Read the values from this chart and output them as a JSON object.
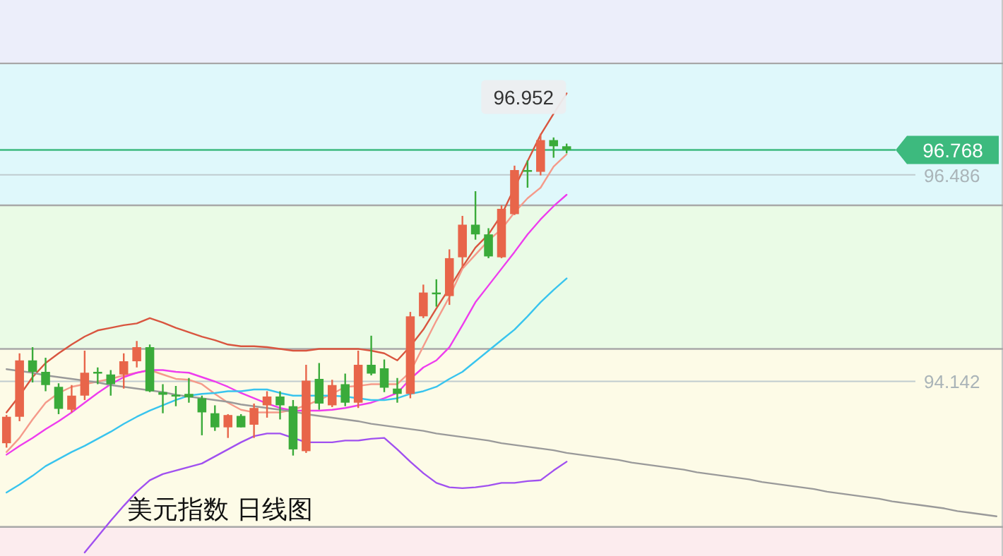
{
  "chart_data": {
    "type": "candlestick",
    "title": "美元指数 日线图",
    "categories": [
      null,
      null,
      null,
      null,
      null,
      null,
      null,
      null,
      null,
      null,
      null,
      null,
      null,
      null,
      null,
      null,
      null,
      null,
      null,
      null,
      null,
      null,
      null,
      null,
      null,
      null,
      null,
      null,
      null,
      null,
      null,
      null,
      null,
      null,
      null,
      null,
      null,
      null,
      null,
      null,
      null,
      null,
      null,
      null,
      null,
      null,
      null,
      null,
      null,
      null,
      null,
      null,
      null,
      null,
      null,
      null,
      null,
      null,
      null,
      null,
      null,
      null,
      null,
      null,
      null,
      null,
      null,
      null,
      null,
      null,
      null,
      null,
      null,
      null,
      null,
      null,
      null
    ],
    "ohlc": [
      [
        93.44,
        93.76,
        93.39,
        93.74
      ],
      [
        93.74,
        94.46,
        93.69,
        94.38
      ],
      [
        94.38,
        94.53,
        94.13,
        94.25
      ],
      [
        94.25,
        94.41,
        94.03,
        94.1
      ],
      [
        94.08,
        94.12,
        93.77,
        93.83
      ],
      [
        93.82,
        94.1,
        93.79,
        93.98
      ],
      [
        93.98,
        94.49,
        93.93,
        94.24
      ],
      [
        94.25,
        94.3,
        94.11,
        94.23
      ],
      [
        94.22,
        94.27,
        93.98,
        94.11
      ],
      [
        94.22,
        94.46,
        94.06,
        94.37
      ],
      [
        94.37,
        94.6,
        94.3,
        94.53
      ],
      [
        94.53,
        94.56,
        94.02,
        94.03
      ],
      [
        94.02,
        94.11,
        93.78,
        93.99
      ],
      [
        93.99,
        94.09,
        93.86,
        93.97
      ],
      [
        94.0,
        94.18,
        93.9,
        93.96
      ],
      [
        93.95,
        93.98,
        93.53,
        93.79
      ],
      [
        93.78,
        93.87,
        93.58,
        93.62
      ],
      [
        93.62,
        93.77,
        93.5,
        93.76
      ],
      [
        93.75,
        93.77,
        93.62,
        93.62
      ],
      [
        93.65,
        93.89,
        93.5,
        93.84
      ],
      [
        93.87,
        94.03,
        93.73,
        93.97
      ],
      [
        93.97,
        94.03,
        93.71,
        93.87
      ],
      [
        93.86,
        93.93,
        93.3,
        93.37
      ],
      [
        93.35,
        94.33,
        93.33,
        94.15
      ],
      [
        94.17,
        94.35,
        93.82,
        93.89
      ],
      [
        93.87,
        94.16,
        93.85,
        94.1
      ],
      [
        94.11,
        94.23,
        93.86,
        93.9
      ],
      [
        93.9,
        94.49,
        93.84,
        94.33
      ],
      [
        94.33,
        94.66,
        94.21,
        94.23
      ],
      [
        94.29,
        94.39,
        94.02,
        94.07
      ],
      [
        94.06,
        94.18,
        93.9,
        94.0
      ],
      [
        94.0,
        94.93,
        93.95,
        94.88
      ],
      [
        94.88,
        95.24,
        94.86,
        95.15
      ],
      [
        95.15,
        95.3,
        94.99,
        95.13
      ],
      [
        95.11,
        95.64,
        95.01,
        95.54
      ],
      [
        95.55,
        96.02,
        95.43,
        95.92
      ],
      [
        95.92,
        96.3,
        95.75,
        95.81
      ],
      [
        95.81,
        95.88,
        95.54,
        95.56
      ],
      [
        95.55,
        96.14,
        95.54,
        96.1
      ],
      [
        96.04,
        96.59,
        96.03,
        96.54
      ],
      [
        96.54,
        96.65,
        96.34,
        96.52
      ],
      [
        96.52,
        96.952,
        96.48,
        96.88
      ],
      [
        96.88,
        96.91,
        96.68,
        96.81
      ],
      [
        96.81,
        96.84,
        96.73,
        96.768
      ],
      null,
      null,
      null,
      null,
      null,
      null,
      null,
      null,
      null,
      null,
      null,
      null,
      null,
      null,
      null,
      null,
      null,
      null,
      null,
      null,
      null,
      null,
      null,
      null,
      null,
      null,
      null,
      null,
      null,
      null,
      null,
      null,
      null
    ],
    "colors": [
      "#e8654a",
      "#e8654a",
      "#3aab3a",
      "#3aab3a",
      "#3aab3a",
      "#e8654a",
      "#e8654a",
      "#3aab3a",
      "#3aab3a",
      "#e8654a",
      "#e8654a",
      "#3aab3a",
      "#3aab3a",
      "#3aab3a",
      "#3aab3a",
      "#3aab3a",
      "#3aab3a",
      "#e8654a",
      "#3aab3a",
      "#e8654a",
      "#e8654a",
      "#3aab3a",
      "#3aab3a",
      "#e8654a",
      "#3aab3a",
      "#e8654a",
      "#3aab3a",
      "#e8654a",
      "#3aab3a",
      "#3aab3a",
      "#3aab3a",
      "#e8654a",
      "#e8654a",
      "#3aab3a",
      "#e8654a",
      "#e8654a",
      "#3aab3a",
      "#3aab3a",
      "#e8654a",
      "#e8654a",
      "#3aab3a",
      "#e8654a",
      "#3aab3a",
      "#3aab3a",
      null,
      null,
      null,
      null,
      null,
      null,
      null,
      null,
      null,
      null,
      null,
      null,
      null,
      null,
      null,
      null,
      null,
      null,
      null,
      null,
      null,
      null,
      null,
      null,
      null,
      null,
      null,
      null,
      null,
      null,
      null,
      null,
      null
    ],
    "series": [
      {
        "type": "line",
        "color": "#d9553f",
        "values": [
          93.79,
          93.98,
          94.19,
          94.35,
          94.46,
          94.56,
          94.65,
          94.72,
          94.75,
          94.78,
          94.8,
          94.86,
          94.81,
          94.75,
          94.7,
          94.65,
          94.61,
          94.56,
          94.54,
          94.54,
          94.53,
          94.51,
          94.49,
          94.49,
          94.51,
          94.51,
          94.51,
          94.51,
          94.49,
          94.46,
          94.38,
          94.54,
          94.73,
          94.97,
          95.2,
          95.44,
          95.66,
          95.81,
          96.03,
          96.34,
          96.64,
          96.94,
          97.18,
          97.41,
          null,
          null,
          null,
          null,
          null,
          null,
          null,
          null,
          null,
          null,
          null,
          null,
          null,
          null,
          null,
          null,
          null,
          null,
          null,
          null,
          null,
          null,
          null,
          null,
          null,
          null,
          null,
          null,
          null,
          null,
          null,
          null,
          null
        ]
      },
      {
        "type": "line",
        "color": "#f59a8a",
        "values": [
          93.34,
          93.5,
          93.71,
          93.9,
          94.01,
          94.08,
          94.11,
          94.14,
          94.17,
          94.21,
          94.24,
          94.27,
          94.22,
          94.17,
          94.16,
          94.11,
          94.0,
          93.9,
          93.82,
          93.79,
          93.79,
          93.79,
          93.82,
          93.87,
          93.93,
          94.0,
          94.08,
          94.09,
          94.11,
          94.11,
          94.11,
          94.25,
          94.54,
          94.83,
          95.1,
          95.42,
          95.58,
          95.74,
          95.87,
          96.06,
          96.22,
          96.34,
          96.58,
          96.72,
          null,
          null,
          null,
          null,
          null,
          null,
          null,
          null,
          null,
          null,
          null,
          null,
          null,
          null,
          null,
          null,
          null,
          null,
          null,
          null,
          null,
          null,
          null,
          null,
          null,
          null,
          null,
          null,
          null,
          null,
          null,
          null,
          null
        ]
      },
      {
        "type": "line",
        "color": "#ee3cee",
        "values": [
          93.31,
          93.41,
          93.5,
          93.6,
          93.69,
          93.79,
          93.9,
          94.01,
          94.11,
          94.19,
          94.24,
          94.27,
          94.27,
          94.25,
          94.24,
          94.19,
          94.14,
          94.08,
          94.01,
          93.95,
          93.89,
          93.84,
          93.81,
          93.81,
          93.81,
          93.82,
          93.84,
          93.87,
          93.9,
          93.95,
          94.01,
          94.17,
          94.3,
          94.38,
          94.53,
          94.78,
          95.04,
          95.23,
          95.42,
          95.61,
          95.81,
          95.98,
          96.13,
          96.26,
          null,
          null,
          null,
          null,
          null,
          null,
          null,
          null,
          null,
          null,
          null,
          null,
          null,
          null,
          null,
          null,
          null,
          null,
          null,
          null,
          null,
          null,
          null,
          null,
          null,
          null,
          null,
          null,
          null,
          null,
          null,
          null,
          null
        ]
      },
      {
        "type": "line",
        "color": "#38c4ee",
        "values": [
          92.88,
          92.97,
          93.07,
          93.18,
          93.26,
          93.34,
          93.41,
          93.49,
          93.57,
          93.66,
          93.74,
          93.81,
          93.87,
          93.93,
          93.98,
          94.0,
          94.01,
          94.03,
          94.03,
          94.05,
          94.05,
          94.01,
          93.98,
          93.98,
          93.98,
          93.98,
          93.97,
          93.95,
          93.93,
          93.93,
          93.95,
          94.0,
          94.03,
          94.08,
          94.17,
          94.25,
          94.37,
          94.49,
          94.61,
          94.73,
          94.88,
          95.04,
          95.18,
          95.31,
          null,
          null,
          null,
          null,
          null,
          null,
          null,
          null,
          null,
          null,
          null,
          null,
          null,
          null,
          null,
          null,
          null,
          null,
          null,
          null,
          null,
          null,
          null,
          null,
          null,
          null,
          null,
          null,
          null,
          null,
          null,
          null,
          null
        ]
      },
      {
        "type": "line",
        "color": "#a050f0",
        "values": [
          null,
          null,
          null,
          null,
          null,
          null,
          92.2,
          92.38,
          92.56,
          92.73,
          92.89,
          93.02,
          93.09,
          93.13,
          93.17,
          93.21,
          93.29,
          93.37,
          93.45,
          93.52,
          93.55,
          93.55,
          93.5,
          93.45,
          93.45,
          93.45,
          93.47,
          93.47,
          93.49,
          93.5,
          93.37,
          93.23,
          93.1,
          92.99,
          92.94,
          92.93,
          92.94,
          92.96,
          92.99,
          92.99,
          93.01,
          93.02,
          93.13,
          93.23,
          null,
          null,
          null,
          null,
          null,
          null,
          null,
          null,
          null,
          null,
          null,
          null,
          null,
          null,
          null,
          null,
          null,
          null,
          null,
          null,
          null,
          null,
          null,
          null,
          null,
          null,
          null,
          null,
          null,
          null,
          null,
          null,
          null
        ]
      },
      {
        "type": "line",
        "color": "#9a9a9a",
        "values": [
          94.28,
          94.26,
          94.24,
          94.21,
          94.19,
          94.17,
          94.15,
          94.13,
          94.1,
          94.08,
          94.06,
          94.04,
          94.02,
          93.99,
          93.97,
          93.95,
          93.93,
          93.91,
          93.88,
          93.86,
          93.84,
          93.82,
          93.8,
          93.77,
          93.75,
          93.73,
          93.71,
          93.69,
          93.66,
          93.64,
          93.62,
          93.6,
          93.58,
          93.55,
          93.53,
          93.51,
          93.49,
          93.47,
          93.44,
          93.42,
          93.4,
          93.38,
          93.36,
          93.33,
          93.31,
          93.29,
          93.27,
          93.25,
          93.22,
          93.2,
          93.18,
          93.16,
          93.14,
          93.11,
          93.09,
          93.07,
          93.05,
          93.03,
          93.0,
          92.98,
          92.96,
          92.94,
          92.92,
          92.89,
          92.87,
          92.85,
          92.83,
          92.81,
          92.78,
          92.76,
          92.74,
          92.72,
          92.7,
          92.67,
          92.65,
          92.63,
          92.61
        ]
      }
    ],
    "bands": [
      {
        "axis": "y",
        "from": 97.75,
        "to": 98.47,
        "color": "#eceefa"
      },
      {
        "axis": "y",
        "from": 96.14,
        "to": 97.75,
        "color": "#dff8fb"
      },
      {
        "axis": "y",
        "from": 94.51,
        "to": 96.14,
        "color": "#eafbe6"
      },
      {
        "axis": "y",
        "from": 92.49,
        "to": 94.51,
        "color": "#fdfbe7"
      },
      {
        "axis": "y",
        "from": 92.16,
        "to": 92.49,
        "color": "#fcecee"
      }
    ],
    "ref_lines": [
      {
        "axis": "y",
        "value": 96.768,
        "label": "96.768",
        "color": "#3dba7e"
      },
      {
        "axis": "y",
        "value": 97.75,
        "color": "#a8a8a8"
      },
      {
        "axis": "y",
        "value": 96.14,
        "color": "#a8a8a8"
      },
      {
        "axis": "y",
        "value": 94.51,
        "color": "#a8a8a8"
      },
      {
        "axis": "y",
        "value": 92.49,
        "color": "#a8a8a8"
      }
    ],
    "ylim": [
      92.16,
      98.47
    ],
    "yticks": [
      96.486,
      94.142
    ],
    "grid": "y",
    "annotations": [
      "96.952"
    ]
  }
}
